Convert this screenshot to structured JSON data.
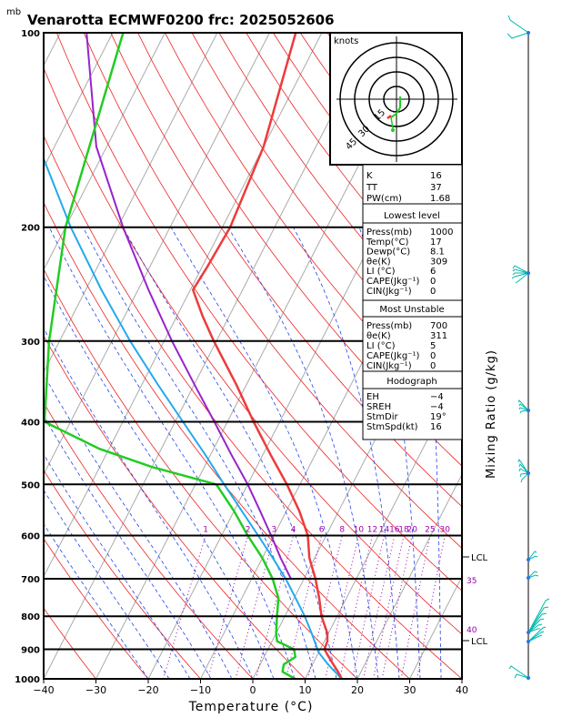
{
  "title": "Venarotta ECMWF0200  frc: 2025052606",
  "pressure_unit": "mb",
  "chart_data": {
    "type": "skew-t",
    "xlabel": "Temperature (°C)",
    "right_label": "Mixing Ratio (g/kg)",
    "x_ticks": [
      "−40",
      "−30",
      "−20",
      "−10",
      "0",
      "10",
      "20",
      "30",
      "40"
    ],
    "xlim": [
      -40,
      40
    ],
    "ylim": [
      1000,
      100
    ],
    "pressure_ticks": [
      "100",
      "200",
      "300",
      "400",
      "500",
      "600",
      "700",
      "800",
      "900",
      "1000"
    ],
    "mixing_ratio_labels": [
      "1",
      "2",
      "3",
      "4",
      "6",
      "8",
      "10",
      "12",
      "14",
      "16",
      "18",
      "20",
      "25",
      "30"
    ],
    "right_tick_labels": [
      "35",
      "40"
    ],
    "temperature": [
      {
        "p": 1000,
        "t": 17
      },
      {
        "p": 975,
        "t": 15.6
      },
      {
        "p": 950,
        "t": 14
      },
      {
        "p": 925,
        "t": 12.4
      },
      {
        "p": 900,
        "t": 10.8
      },
      {
        "p": 875,
        "t": 10.6
      },
      {
        "p": 850,
        "t": 9.8
      },
      {
        "p": 800,
        "t": 7
      },
      {
        "p": 750,
        "t": 4.8
      },
      {
        "p": 700,
        "t": 2.2
      },
      {
        "p": 650,
        "t": -1
      },
      {
        "p": 600,
        "t": -3.5
      },
      {
        "p": 550,
        "t": -7.5
      },
      {
        "p": 500,
        "t": -12.5
      },
      {
        "p": 450,
        "t": -18.5
      },
      {
        "p": 400,
        "t": -25
      },
      {
        "p": 350,
        "t": -32
      },
      {
        "p": 300,
        "t": -40.5
      },
      {
        "p": 275,
        "t": -45
      },
      {
        "p": 250,
        "t": -49.5
      },
      {
        "p": 230,
        "t": -49
      },
      {
        "p": 200,
        "t": -48.5
      },
      {
        "p": 150,
        "t": -50
      },
      {
        "p": 100,
        "t": -55
      }
    ],
    "dewpoint": [
      {
        "p": 1000,
        "t": 8.1
      },
      {
        "p": 975,
        "t": 5
      },
      {
        "p": 950,
        "t": 4.5
      },
      {
        "p": 925,
        "t": 6
      },
      {
        "p": 900,
        "t": 5
      },
      {
        "p": 875,
        "t": 1
      },
      {
        "p": 850,
        "t": 0
      },
      {
        "p": 800,
        "t": -1.5
      },
      {
        "p": 750,
        "t": -3
      },
      {
        "p": 700,
        "t": -6
      },
      {
        "p": 650,
        "t": -10
      },
      {
        "p": 600,
        "t": -15
      },
      {
        "p": 550,
        "t": -20
      },
      {
        "p": 500,
        "t": -26
      },
      {
        "p": 470,
        "t": -40
      },
      {
        "p": 440,
        "t": -52
      },
      {
        "p": 400,
        "t": -65
      },
      {
        "p": 300,
        "t": -72
      },
      {
        "p": 200,
        "t": -80
      },
      {
        "p": 100,
        "t": -88
      }
    ],
    "parcel": [
      {
        "p": 700,
        "t": -2.5
      },
      {
        "p": 650,
        "t": -6.5
      },
      {
        "p": 600,
        "t": -10.5
      },
      {
        "p": 550,
        "t": -15
      },
      {
        "p": 500,
        "t": -20
      },
      {
        "p": 450,
        "t": -26
      },
      {
        "p": 400,
        "t": -32.5
      },
      {
        "p": 350,
        "t": -40
      },
      {
        "p": 300,
        "t": -48.5
      },
      {
        "p": 250,
        "t": -58
      },
      {
        "p": 200,
        "t": -69
      },
      {
        "p": 150,
        "t": -82
      },
      {
        "p": 100,
        "t": -95
      }
    ],
    "parcel_surface": [
      {
        "p": 1000,
        "t": 17
      },
      {
        "p": 950,
        "t": 13
      },
      {
        "p": 910,
        "t": 10
      },
      {
        "p": 850,
        "t": 6.8
      },
      {
        "p": 800,
        "t": 3.8
      },
      {
        "p": 750,
        "t": 0.3
      },
      {
        "p": 700,
        "t": -3.5
      },
      {
        "p": 650,
        "t": -8
      },
      {
        "p": 600,
        "t": -13
      },
      {
        "p": 550,
        "t": -18.5
      },
      {
        "p": 500,
        "t": -24.5
      },
      {
        "p": 450,
        "t": -31
      },
      {
        "p": 400,
        "t": -38.5
      },
      {
        "p": 350,
        "t": -47
      },
      {
        "p": 300,
        "t": -56.5
      },
      {
        "p": 250,
        "t": -67
      },
      {
        "p": 200,
        "t": -79
      },
      {
        "p": 150,
        "t": -93
      }
    ],
    "lcl_labels": [
      "LCL",
      "LCL"
    ]
  },
  "indices": {
    "basic": [
      {
        "label": "K",
        "value": "16"
      },
      {
        "label": "TT",
        "value": "37"
      },
      {
        "label": "PW(cm)",
        "value": "1.68"
      }
    ],
    "lowest_level": {
      "header": "Lowest level",
      "rows": [
        {
          "label": "Press(mb)",
          "value": "1000"
        },
        {
          "label": "Temp(°C)",
          "value": "17"
        },
        {
          "label": "Dewp(°C)",
          "value": "8.1"
        },
        {
          "label": "θe(K)",
          "value": "309"
        },
        {
          "label": "LI  (°C)",
          "value": "6"
        },
        {
          "label": "CAPE(Jkg⁻¹)",
          "value": "0"
        },
        {
          "label": "CIN(Jkg⁻¹)",
          "value": "0"
        }
      ]
    },
    "most_unstable": {
      "header": "Most Unstable",
      "rows": [
        {
          "label": "Press(mb)",
          "value": "700"
        },
        {
          "label": "θe(K)",
          "value": "311"
        },
        {
          "label": "LI  (°C)",
          "value": "5"
        },
        {
          "label": "CAPE(Jkg⁻¹)",
          "value": "0"
        },
        {
          "label": "CIN(Jkg⁻¹)",
          "value": "0"
        }
      ]
    },
    "hodograph_indices": {
      "header": "Hodograph",
      "rows": [
        {
          "label": "EH",
          "value": "−4"
        },
        {
          "label": "SREH",
          "value": "−4"
        },
        {
          "label": "StmDir",
          "value": "19°"
        },
        {
          "label": "StmSpd(kt)",
          "value": "16"
        }
      ]
    }
  },
  "hodograph": {
    "unit_label": "knots",
    "ring_labels": [
      "15",
      "30",
      "45"
    ]
  },
  "colors": {
    "temperature": "#ee3b3b",
    "dewpoint": "#22cc22",
    "parcel": "#9922cc",
    "parcel_surface": "#22aaee",
    "isotherm": "#aaaaaa",
    "dry_adiabat": "#ee2222",
    "moist_adiabat": "#2244ee",
    "mixing_ratio": "#9900aa",
    "barb": "#00bbaa"
  }
}
